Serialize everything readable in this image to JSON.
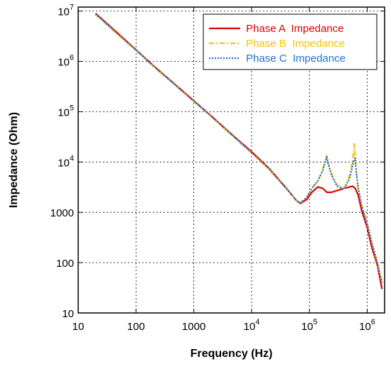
{
  "chart_data": {
    "type": "line",
    "xscale": "log",
    "yscale": "log",
    "xlim": [
      10,
      2000000
    ],
    "ylim": [
      10,
      12000000
    ],
    "xlabel": "Frequency (Hz)",
    "ylabel": "Impedance (Ohm)",
    "x_ticks": [
      {
        "value": 10,
        "label": "10"
      },
      {
        "value": 100,
        "label": "100"
      },
      {
        "value": 1000,
        "label": "1000"
      },
      {
        "value": 10000,
        "label": "10",
        "exp": "4"
      },
      {
        "value": 100000,
        "label": "10",
        "exp": "5"
      },
      {
        "value": 1000000,
        "label": "10",
        "exp": "6"
      }
    ],
    "y_ticks": [
      {
        "value": 10,
        "label": "10"
      },
      {
        "value": 100,
        "label": "100"
      },
      {
        "value": 1000,
        "label": "1000"
      },
      {
        "value": 10000,
        "label": "10",
        "exp": "4"
      },
      {
        "value": 100000,
        "label": "10",
        "exp": "5"
      },
      {
        "value": 1000000,
        "label": "10",
        "exp": "6"
      },
      {
        "value": 10000000,
        "label": "10",
        "exp": "7"
      }
    ],
    "grid": true,
    "legend_position": "top-right",
    "series": [
      {
        "name": "Phase A  Impedance",
        "color": "#e00000",
        "style": "solid",
        "x": [
          20,
          50,
          100,
          200,
          500,
          1000,
          2000,
          5000,
          10000,
          20000,
          40000,
          60000,
          70000,
          90000,
          110000,
          140000,
          170000,
          200000,
          240000,
          300000,
          400000,
          500000,
          560000,
          620000,
          700000,
          800000,
          1000000,
          1200000,
          1500000,
          1800000
        ],
        "y": [
          9000000,
          3500000,
          1700000,
          820000,
          330000,
          165000,
          82000,
          32000,
          16000,
          7500,
          3000,
          1700,
          1500,
          1800,
          2500,
          3200,
          3000,
          2500,
          2500,
          2700,
          3000,
          3200,
          3300,
          3000,
          2200,
          1100,
          500,
          200,
          90,
          30
        ]
      },
      {
        "name": "Phase B  Impedance",
        "color": "#f5c400",
        "style": "dashdot",
        "x": [
          20,
          50,
          100,
          200,
          500,
          1000,
          2000,
          5000,
          10000,
          20000,
          40000,
          60000,
          70000,
          90000,
          110000,
          140000,
          170000,
          190000,
          200000,
          210000,
          240000,
          300000,
          400000,
          500000,
          560000,
          600000,
          620000,
          650000,
          700000,
          800000,
          1000000,
          1200000,
          1500000,
          1800000
        ],
        "y": [
          8500000,
          3300000,
          1650000,
          800000,
          320000,
          160000,
          80000,
          31000,
          15000,
          7200,
          2900,
          1700,
          1550,
          2000,
          3000,
          4200,
          7000,
          11000,
          13500,
          10000,
          6000,
          3500,
          3000,
          5500,
          11000,
          23000,
          14000,
          6000,
          3000,
          1400,
          600,
          250,
          100,
          40
        ]
      },
      {
        "name": "Phase C  Impedance",
        "color": "#1f6fd6",
        "style": "dotted",
        "x": [
          20,
          50,
          100,
          200,
          500,
          1000,
          2000,
          5000,
          10000,
          20000,
          40000,
          60000,
          70000,
          90000,
          110000,
          140000,
          170000,
          190000,
          200000,
          210000,
          240000,
          300000,
          400000,
          500000,
          560000,
          600000,
          620000,
          650000,
          700000,
          800000,
          1000000,
          1200000,
          1500000,
          1800000
        ],
        "y": [
          8700000,
          3400000,
          1680000,
          810000,
          325000,
          162000,
          81000,
          31500,
          15500,
          7300,
          2950,
          1700,
          1550,
          2000,
          3000,
          4200,
          6800,
          10500,
          12500,
          9500,
          5500,
          3300,
          2900,
          4800,
          8500,
          11500,
          12000,
          6000,
          3000,
          1400,
          600,
          250,
          100,
          40
        ]
      }
    ]
  }
}
